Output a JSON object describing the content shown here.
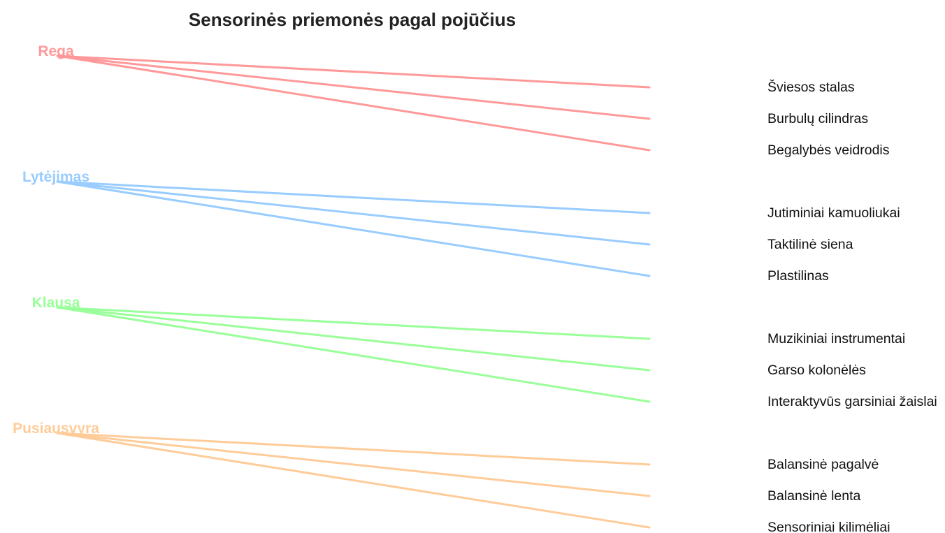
{
  "title": "Sensorinės priemonės pagal pojūčius",
  "categories": [
    {
      "label": "Rega",
      "color": "#ff9999",
      "items": [
        "Šviesos stalas",
        "Burbulų cilindras",
        "Begalybės veidrodis"
      ]
    },
    {
      "label": "Lytėjimas",
      "color": "#99ccff",
      "items": [
        "Jutiminiai kamuoliukai",
        "Taktilinė siena",
        "Plastilinas"
      ]
    },
    {
      "label": "Klausa",
      "color": "#99ff99",
      "items": [
        "Muzikiniai instrumentai",
        "Garso kolonėlės",
        "Interaktyvūs garsiniai žaislai"
      ]
    },
    {
      "label": "Pusiausvyra",
      "color": "#ffcc99",
      "items": [
        "Balansinė pagalvė",
        "Balansinė lenta",
        "Sensoriniai kilimėliai"
      ]
    }
  ]
}
